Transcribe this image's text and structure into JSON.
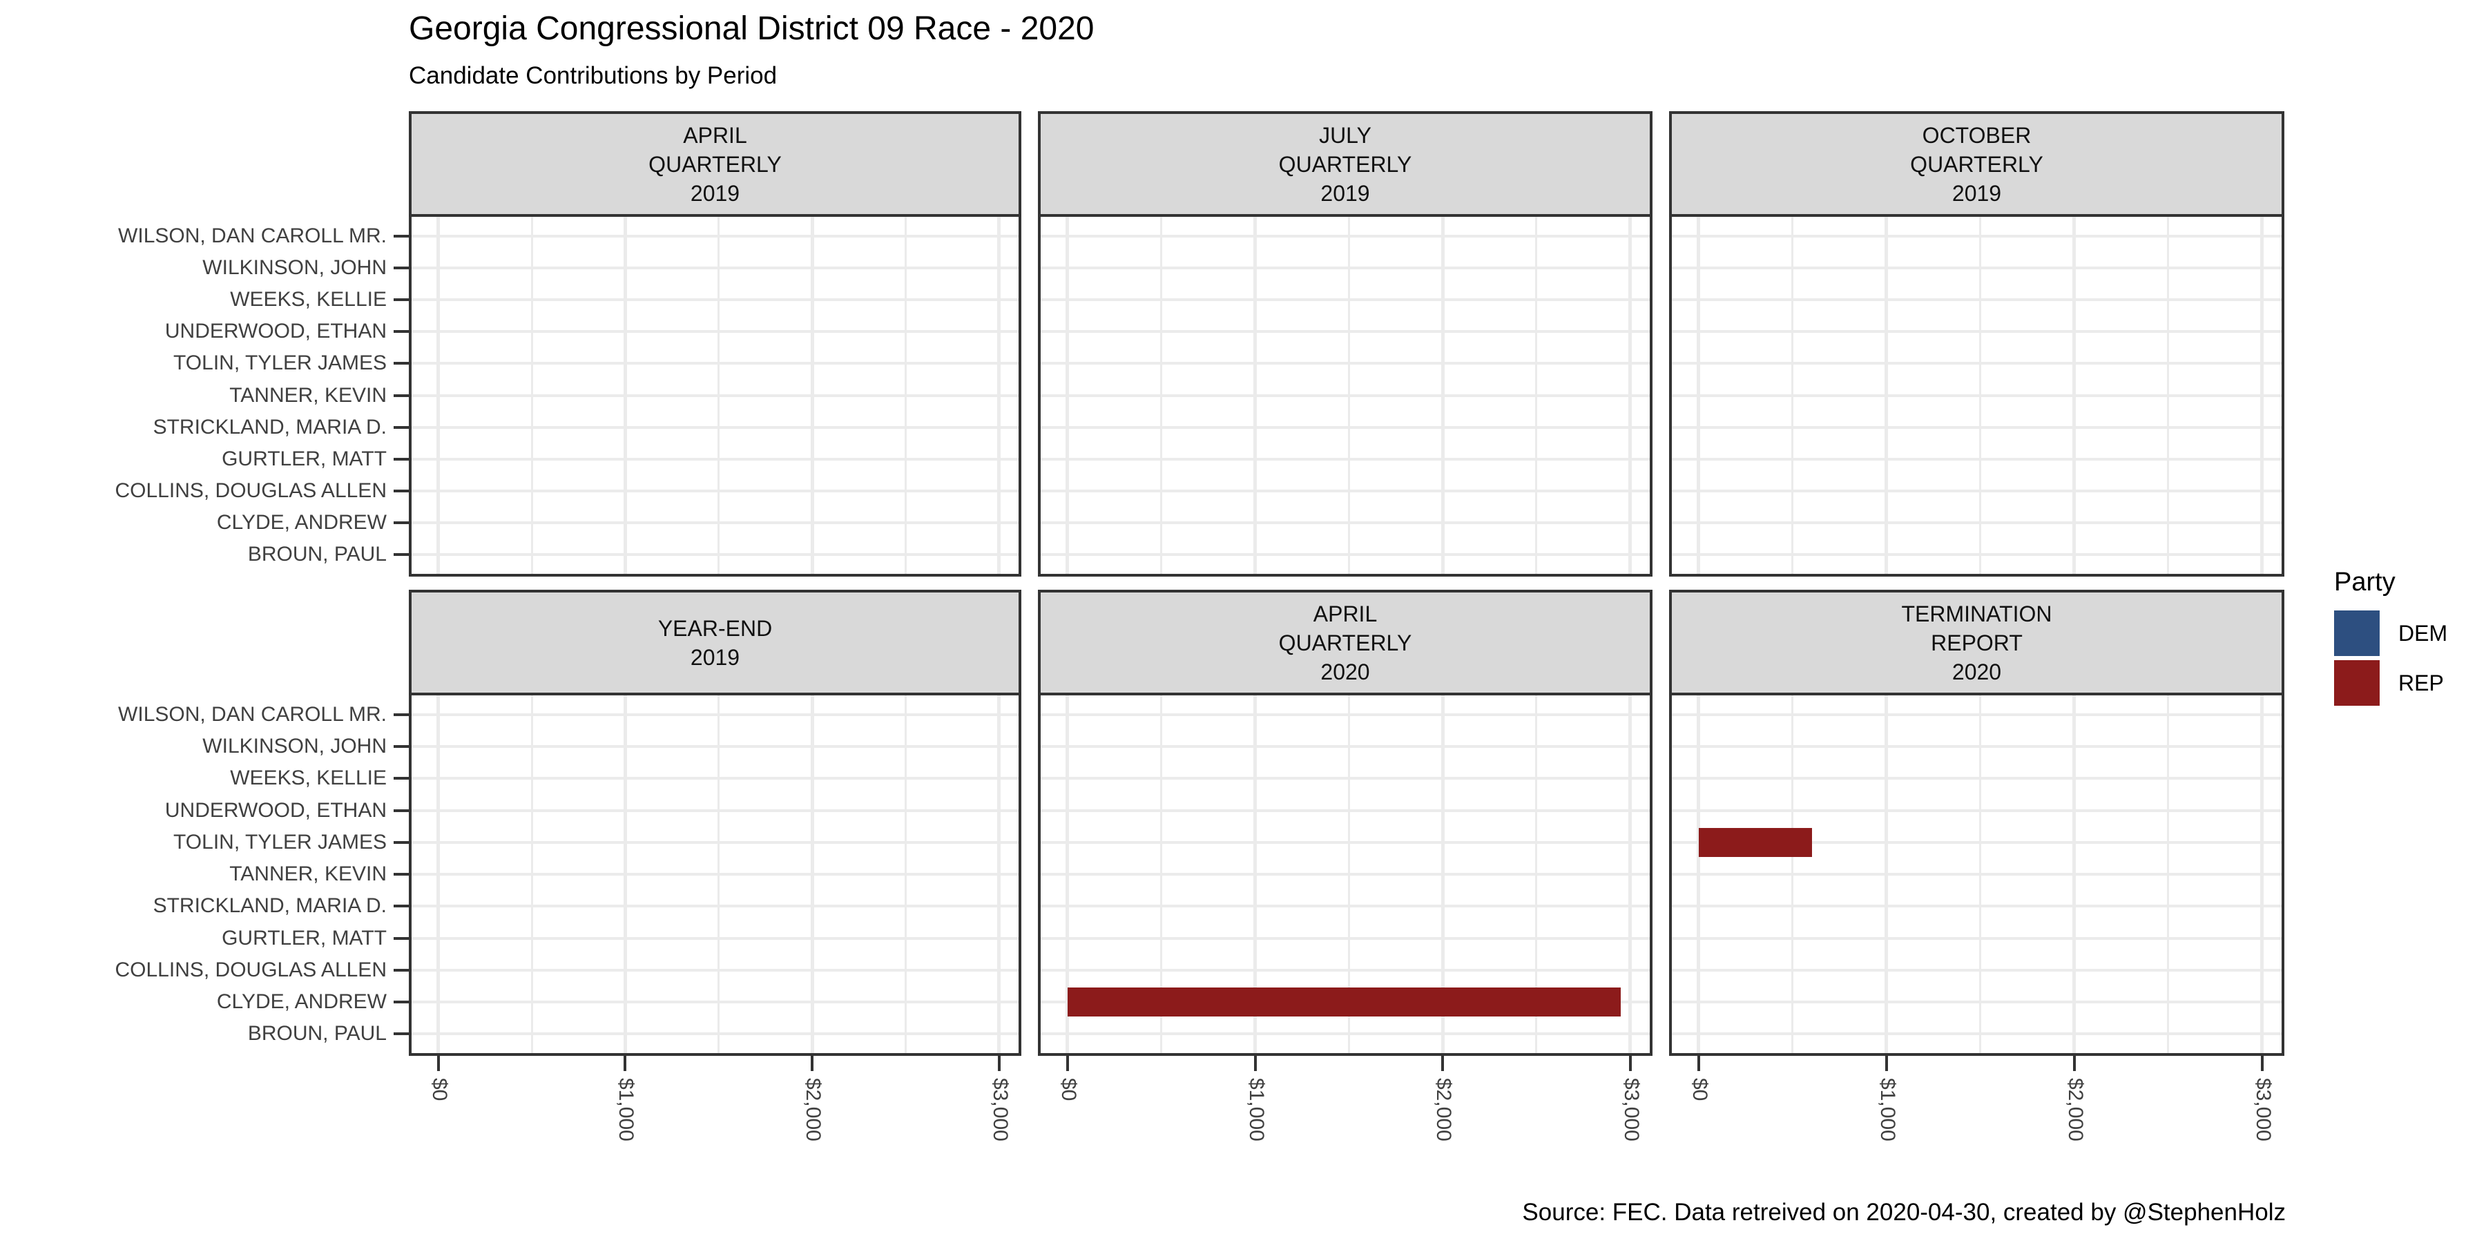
{
  "title": "Georgia Congressional District 09 Race - 2020",
  "subtitle": "Candidate Contributions by Period",
  "caption": "Source: FEC. Data retreived on 2020-04-30, created by @StephenHolz",
  "legend": {
    "title": "Party",
    "items": [
      {
        "label": "DEM",
        "color": "#2d4f80"
      },
      {
        "label": "REP",
        "color": "#8c1b1b"
      }
    ]
  },
  "colors": {
    "strip_fill": "#d9d9d9",
    "panel_border": "#333333",
    "gridline": "#ebebeb",
    "axis_text": "#404040",
    "dem": "#2d4f80",
    "rep": "#8c1b1b"
  },
  "chart_data": {
    "type": "bar",
    "orientation": "horizontal",
    "title": "Georgia Congressional District 09 Race - 2020",
    "subtitle": "Candidate Contributions by Period",
    "caption": "Source: FEC. Data retreived on 2020-04-30, created by @StephenHolz",
    "facets": [
      {
        "label_lines": [
          "APRIL",
          "QUARTERLY",
          "2019"
        ],
        "row": 0,
        "col": 0
      },
      {
        "label_lines": [
          "JULY",
          "QUARTERLY",
          "2019"
        ],
        "row": 0,
        "col": 1
      },
      {
        "label_lines": [
          "OCTOBER",
          "QUARTERLY",
          "2019"
        ],
        "row": 0,
        "col": 2
      },
      {
        "label_lines": [
          "YEAR-END",
          "2019"
        ],
        "row": 1,
        "col": 0
      },
      {
        "label_lines": [
          "APRIL",
          "QUARTERLY",
          "2020"
        ],
        "row": 1,
        "col": 1
      },
      {
        "label_lines": [
          "TERMINATION",
          "REPORT",
          "2020"
        ],
        "row": 1,
        "col": 2
      }
    ],
    "candidates_top_to_bottom": [
      "WILSON, DAN CAROLL MR.",
      "WILKINSON, JOHN",
      "WEEKS, KELLIE",
      "UNDERWOOD, ETHAN",
      "TOLIN, TYLER JAMES",
      "TANNER, KEVIN",
      "STRICKLAND, MARIA D.",
      "GURTLER, MATT",
      "COLLINS, DOUGLAS ALLEN",
      "CLYDE, ANDREW",
      "BROUN, PAUL"
    ],
    "x_tick_labels": [
      "$0",
      "$1,000",
      "$2,000",
      "$3,000"
    ],
    "x_tick_values": [
      0,
      1000,
      2000,
      3000
    ],
    "xlim": [
      0,
      3000
    ],
    "grid": "major and minor vertical gridlines, major horizontal per candidate",
    "legend_position": "right",
    "legend_title": "Party",
    "legend_entries": [
      "DEM",
      "REP"
    ],
    "bars": [
      {
        "facet": "APRIL QUARTERLY 2020",
        "candidate": "CLYDE, ANDREW",
        "party": "REP",
        "value": 2950
      },
      {
        "facet": "TERMINATION REPORT 2020",
        "candidate": "TOLIN, TYLER JAMES",
        "party": "REP",
        "value": 605
      }
    ]
  }
}
